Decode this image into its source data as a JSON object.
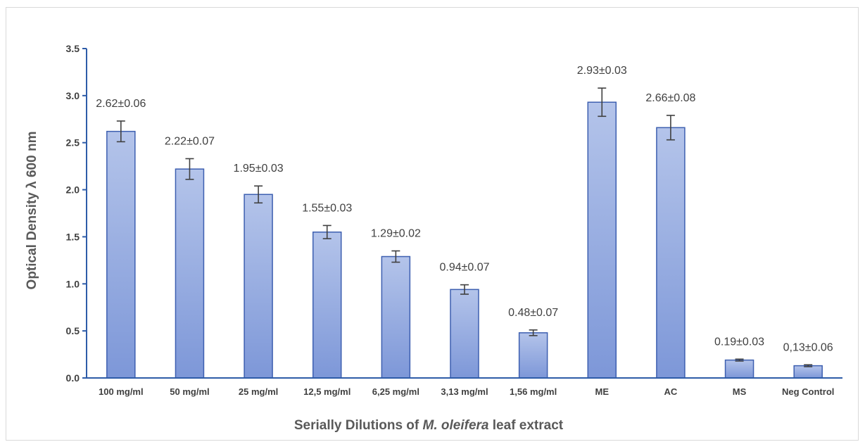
{
  "colors": {
    "bar_fill_top": "#b4c4ea",
    "bar_fill_bottom": "#7d97d8",
    "bar_stroke": "#3d5fb0",
    "axis": "#2e5ca8",
    "error_bar": "#404040",
    "frame": "#d9d9d9"
  },
  "chart_data": {
    "type": "bar",
    "title": "",
    "xlabel_prefix": "Serially Dilutions of ",
    "xlabel_italic": "M. oleifera",
    "xlabel_suffix": " leaf extract",
    "ylabel": "Optical Density λ 600 nm",
    "ylim": [
      0,
      3.5
    ],
    "yticks": [
      0.0,
      0.5,
      1.0,
      1.5,
      2.0,
      2.5,
      3.0,
      3.5
    ],
    "ytick_labels": [
      "0.0",
      "0.5",
      "1.0",
      "1.5",
      "2.0",
      "2.5",
      "3.0",
      "3.5"
    ],
    "grid": false,
    "legend": "none",
    "categories": [
      "100 mg/ml",
      "50 mg/ml",
      "25 mg/ml",
      "12,5 mg/ml",
      "6,25 mg/ml",
      "3,13 mg/ml",
      "1,56 mg/ml",
      "ME",
      "AC",
      "MS",
      "Neg Control"
    ],
    "values": [
      2.62,
      2.22,
      1.95,
      1.55,
      1.29,
      0.94,
      0.48,
      2.93,
      2.66,
      0.19,
      0.13
    ],
    "errors": [
      0.11,
      0.11,
      0.09,
      0.07,
      0.06,
      0.05,
      0.03,
      0.15,
      0.13,
      0.01,
      0.01
    ],
    "data_labels": [
      "2.62±0.06",
      "2.22±0.07",
      "1.95±0.03",
      "1.55±0.03",
      "1.29±0.02",
      "0.94±0.07",
      "0.48±0.07",
      "2.93±0.03",
      "2.66±0.08",
      "0.19±0.03",
      "0,13±0.06"
    ]
  }
}
